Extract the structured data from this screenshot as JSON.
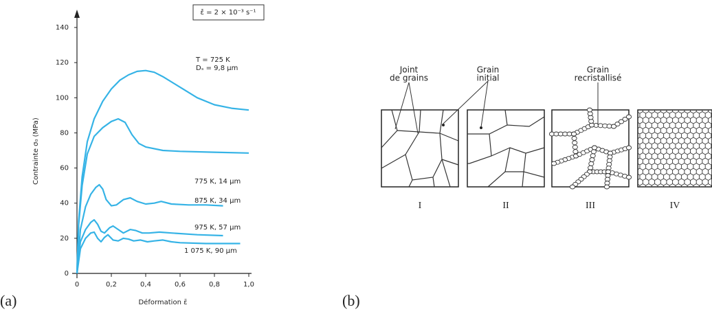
{
  "chart_data": {
    "type": "line",
    "ylabel": "Contrainte σ₀ (MPa)",
    "xlabel": "Déformation ε̄",
    "annotation": "ε̄̇ = 2 × 10⁻³ s⁻¹",
    "panel_label": "(a)",
    "color": "#35b3e6",
    "xlim": [
      0,
      1.0
    ],
    "ylim": [
      0,
      140
    ],
    "xticks": [
      0,
      {
        "value": 0.2,
        "label": "0,2"
      },
      {
        "value": 0.4,
        "label": "0,4"
      },
      {
        "value": 0.6,
        "label": "0,6"
      },
      {
        "value": 0.8,
        "label": "0,8"
      },
      {
        "value": 1.0,
        "label": "1,0"
      }
    ],
    "yticks": [
      0,
      20,
      40,
      60,
      80,
      100,
      120,
      140
    ],
    "series": [
      {
        "name": "T = 725 K",
        "name2": "Dₛ = 9,8 μm",
        "x": [
          0,
          0.01,
          0.03,
          0.06,
          0.1,
          0.15,
          0.2,
          0.25,
          0.3,
          0.35,
          0.4,
          0.45,
          0.5,
          0.6,
          0.7,
          0.8,
          0.9,
          1.0
        ],
        "values": [
          0,
          30,
          55,
          75,
          88,
          98,
          105,
          110,
          113,
          115,
          115.5,
          114.5,
          112,
          106,
          100,
          96,
          94,
          93
        ]
      },
      {
        "name": "775 K, 14 μm",
        "x": [
          0,
          0.01,
          0.03,
          0.06,
          0.1,
          0.15,
          0.2,
          0.24,
          0.28,
          0.32,
          0.36,
          0.4,
          0.5,
          0.6,
          0.8,
          1.0
        ],
        "values": [
          0,
          28,
          50,
          68,
          78,
          83,
          86.5,
          88,
          86,
          79,
          74,
          72,
          70,
          69.5,
          69,
          68.5
        ]
      },
      {
        "name": "875 K, 34 μm",
        "x": [
          0,
          0.02,
          0.05,
          0.08,
          0.11,
          0.13,
          0.15,
          0.17,
          0.2,
          0.23,
          0.27,
          0.31,
          0.35,
          0.4,
          0.45,
          0.49,
          0.55,
          0.65,
          0.75,
          0.85
        ],
        "values": [
          0,
          25,
          38,
          45,
          49,
          50.5,
          48,
          42,
          38.5,
          39,
          42,
          43,
          41,
          39.5,
          40,
          41,
          39.5,
          39,
          39,
          38.5
        ]
      },
      {
        "name": "975 K, 57 μm",
        "x": [
          0,
          0.02,
          0.05,
          0.08,
          0.1,
          0.12,
          0.14,
          0.16,
          0.19,
          0.21,
          0.24,
          0.27,
          0.31,
          0.34,
          0.38,
          0.42,
          0.48,
          0.55,
          0.7,
          0.85
        ],
        "values": [
          0,
          18,
          25,
          29,
          30.5,
          28,
          24,
          23,
          26,
          27,
          25,
          23,
          25,
          24.5,
          23,
          23,
          23.5,
          23,
          22,
          21.5
        ]
      },
      {
        "name": "1 075 K, 90 μm",
        "x": [
          0,
          0.02,
          0.05,
          0.08,
          0.1,
          0.12,
          0.14,
          0.16,
          0.18,
          0.21,
          0.24,
          0.27,
          0.3,
          0.33,
          0.37,
          0.41,
          0.45,
          0.5,
          0.55,
          0.6,
          0.75,
          0.95
        ],
        "values": [
          0,
          14,
          20,
          23,
          23.5,
          20,
          18,
          20.5,
          22,
          19,
          18.5,
          20,
          19.5,
          18.5,
          19,
          18,
          18.5,
          19,
          18,
          17.5,
          17,
          17
        ]
      }
    ]
  },
  "diagram": {
    "panel_label": "(b)",
    "labels": [
      [
        "Joint",
        "de grains"
      ],
      [
        "Grain",
        "initial"
      ],
      [
        "Grain",
        "recristallisé"
      ]
    ],
    "stages": [
      "I",
      "II",
      "III",
      "IV"
    ]
  }
}
